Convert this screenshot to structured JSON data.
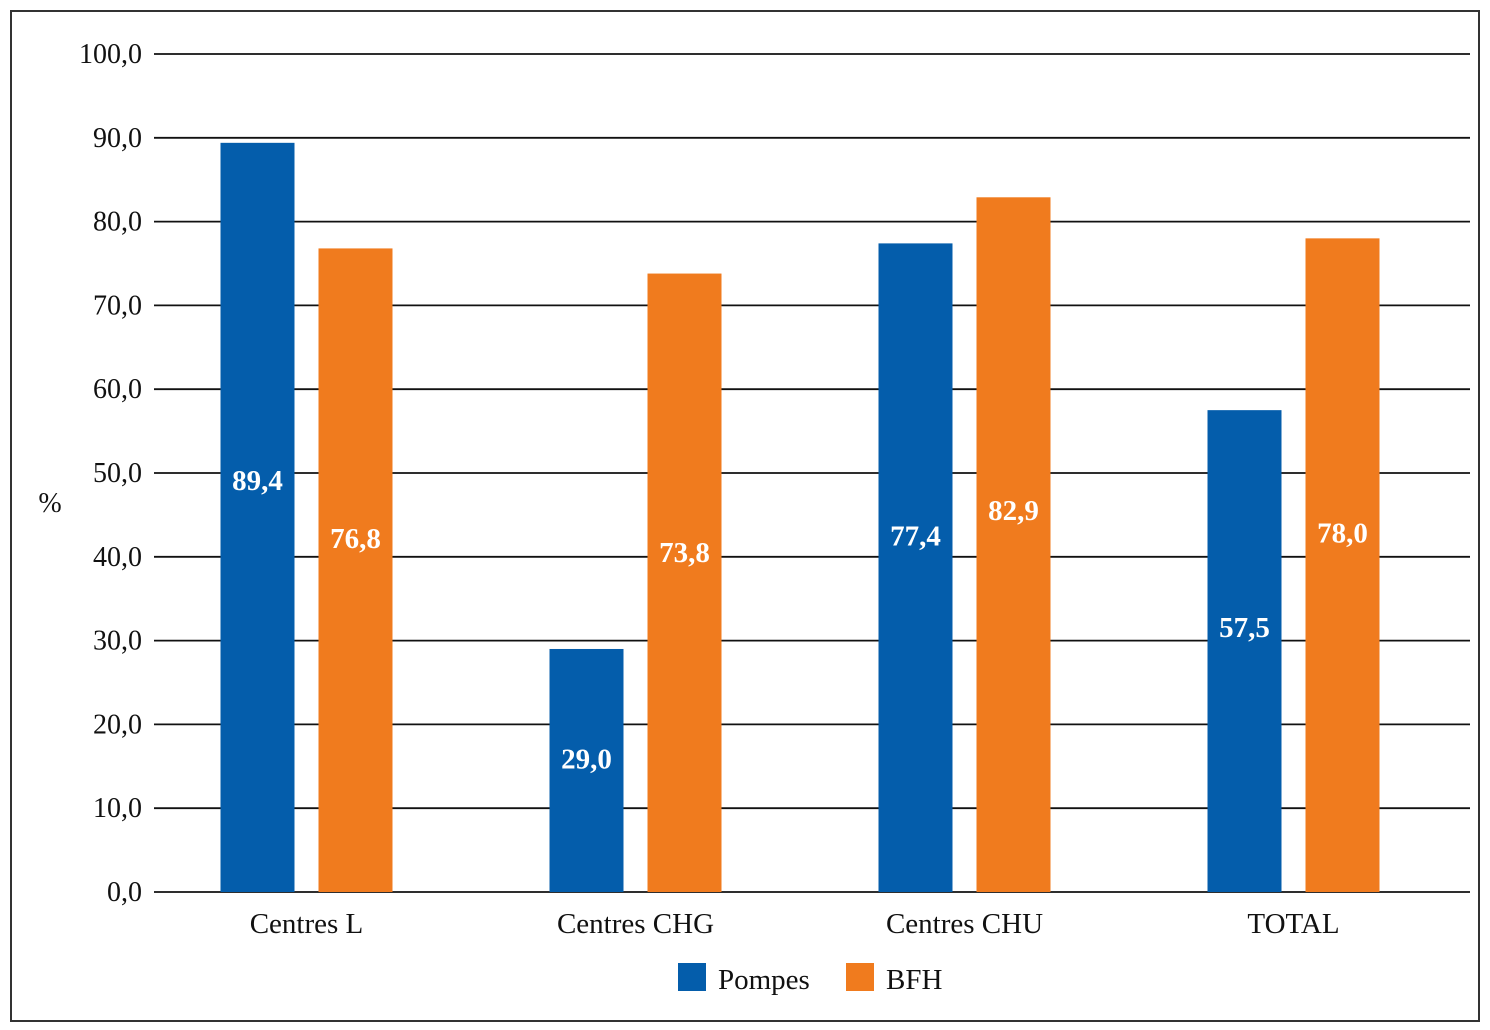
{
  "chart_data": {
    "type": "bar",
    "categories": [
      "Centres L",
      "Centres CHG",
      "Centres CHU",
      "TOTAL"
    ],
    "series": [
      {
        "name": "Pompes",
        "values": [
          89.4,
          29.0,
          77.4,
          57.5
        ],
        "labels": [
          "89,4",
          "29,0",
          "77,4",
          "57,5"
        ],
        "color": "#045DAB"
      },
      {
        "name": "BFH",
        "values": [
          76.8,
          73.8,
          82.9,
          78.0
        ],
        "labels": [
          "76,8",
          "73,8",
          "82,9",
          "78,0"
        ],
        "color": "#F07B1E"
      }
    ],
    "title": "",
    "xlabel": "",
    "ylabel": "%",
    "ylim": [
      0,
      100
    ],
    "yticks": [
      0,
      10,
      20,
      30,
      40,
      50,
      60,
      70,
      80,
      90,
      100
    ],
    "ytick_labels": [
      "0,0",
      "10,0",
      "20,0",
      "30,0",
      "40,0",
      "50,0",
      "60,0",
      "70,0",
      "80,0",
      "90,0",
      "100,0"
    ],
    "grid": true,
    "legend_position": "bottom-center"
  }
}
